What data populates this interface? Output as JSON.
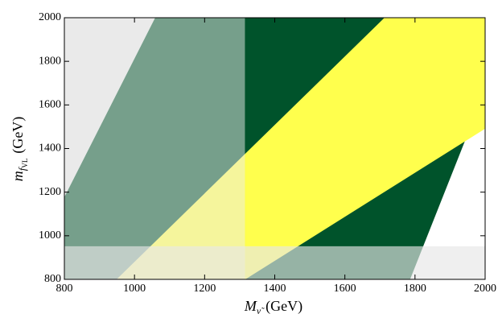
{
  "chart_data": {
    "type": "region",
    "xlabel_parts": [
      "M",
      "ν̃",
      "(GeV)"
    ],
    "ylabel_parts": [
      "m",
      "f",
      "VL",
      "(GeV)"
    ],
    "xlim": [
      800,
      2000
    ],
    "xticks": [
      800,
      1000,
      1200,
      1400,
      1600,
      1800,
      2000
    ],
    "ylim": [
      800,
      2000
    ],
    "yticks": [
      800,
      1000,
      1200,
      1400,
      1600,
      1800,
      2000
    ],
    "regions": [
      {
        "color": "#e9e9e9",
        "opacity": 1,
        "x": [
          800,
          1059,
          800
        ],
        "y": [
          1177,
          2000,
          2000
        ]
      },
      {
        "color": "#00532b",
        "opacity": 1,
        "x": [
          800,
          1059,
          2000,
          2000,
          1786,
          800
        ],
        "y": [
          1177,
          2000,
          2000,
          1668,
          800,
          800
        ]
      },
      {
        "color": "#ffff4d",
        "opacity": 1,
        "x": [
          949,
          1713,
          2000,
          2000,
          1316
        ],
        "y": [
          800,
          2000,
          2000,
          1491,
          800
        ]
      },
      {
        "color": "#ebebeb",
        "opacity": 0.5,
        "x": [
          800,
          1315,
          1315,
          800
        ],
        "y": [
          800,
          800,
          2000,
          2000
        ]
      },
      {
        "color": "#e6e6e6",
        "opacity": 0.65,
        "x": [
          800,
          2000,
          2000,
          800
        ],
        "y": [
          800,
          800,
          952,
          952
        ]
      }
    ]
  }
}
